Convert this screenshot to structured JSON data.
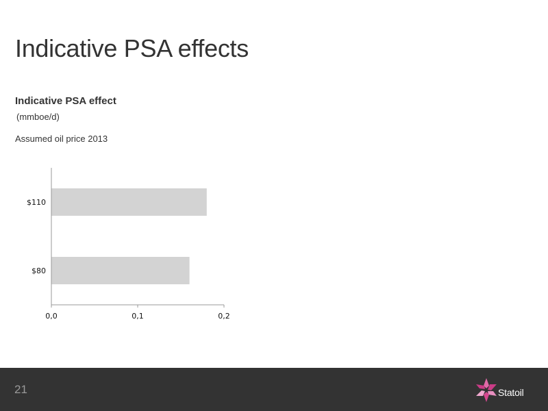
{
  "slide": {
    "title": "Indicative PSA effects",
    "page_number": "21",
    "brand": "Statoil"
  },
  "colors": {
    "bar": "#d3d3d3",
    "axis": "#999999",
    "footer": "#333333",
    "logo_pink": "#d6478f"
  },
  "chart_data": {
    "type": "bar",
    "orientation": "horizontal",
    "title": "Indicative PSA effect",
    "unit": "(mmboe/d)",
    "note": "Assumed oil price 2013",
    "categories": [
      "$110",
      "$80"
    ],
    "values": [
      0.18,
      0.16
    ],
    "xlim": [
      0,
      0.2
    ],
    "xticks": [
      "0,0",
      "0,1",
      "0,2"
    ],
    "grid": false,
    "legend": "none"
  }
}
